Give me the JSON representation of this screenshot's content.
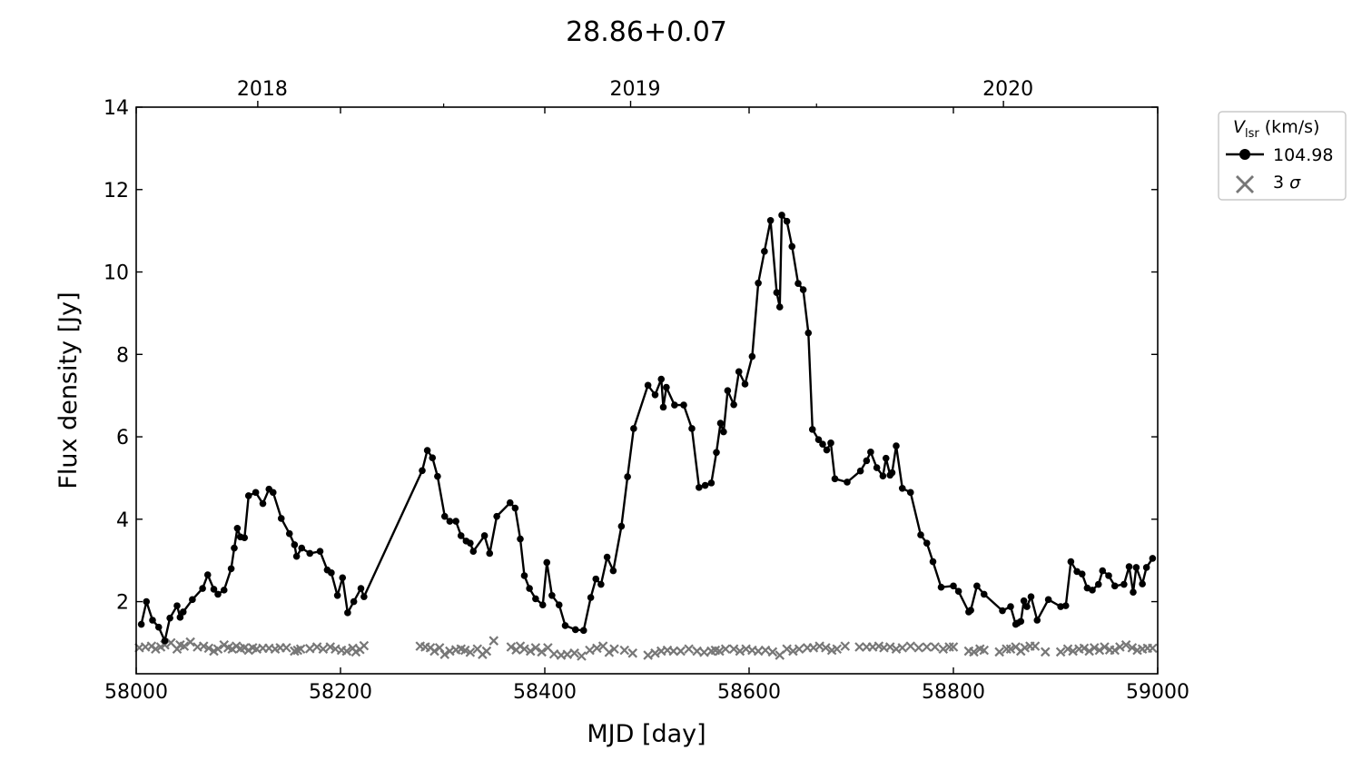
{
  "chart_data": {
    "type": "line",
    "title": "28.86+0.07",
    "xlabel": "MJD [day]",
    "ylabel": "Flux density [Jy]",
    "xlim": [
      58000,
      59000
    ],
    "ylim": [
      0.25,
      14
    ],
    "xticks": [
      58000,
      58200,
      58400,
      58600,
      58800,
      59000
    ],
    "xtick_labels": [
      "58000",
      "58200",
      "58400",
      "58600",
      "58800",
      "59000"
    ],
    "yticks": [
      2,
      4,
      6,
      8,
      10,
      12,
      14
    ],
    "ytick_labels": [
      "2",
      "4",
      "6",
      "8",
      "10",
      "12",
      "14"
    ],
    "top_axis": {
      "ticks": [
        58119,
        58484,
        58849
      ],
      "labels": [
        "2018",
        "2019",
        "2020"
      ]
    },
    "minor_top_ticks": [
      58301,
      58666
    ],
    "grid": false,
    "legend": {
      "placement": "outside-right-top",
      "title_italic": "V",
      "title_sub": "lsr",
      "title_rest": " (km/s)",
      "entries": [
        {
          "label": "104.98",
          "marker": "line-dot",
          "color": "#000000"
        },
        {
          "label_prefix": "3 ",
          "label_italic": "σ",
          "marker": "x",
          "color": "#777777"
        }
      ]
    },
    "series": [
      {
        "name": "104.98",
        "color": "#000000",
        "marker": "dot",
        "x": [
          58005,
          58010,
          58016,
          58022,
          58028,
          58033,
          58040,
          58043,
          58046,
          58055,
          58065,
          58070,
          58076,
          58080,
          58086,
          58093,
          58096,
          58099,
          58102,
          58106,
          58110,
          58117,
          58124,
          58130,
          58134,
          58142,
          58150,
          58155,
          58157,
          58162,
          58170,
          58180,
          58187,
          58191,
          58197,
          58202,
          58207,
          58213,
          58220,
          58223,
          58280,
          58285,
          58290,
          58295,
          58302,
          58307,
          58313,
          58318,
          58323,
          58327,
          58330,
          58341,
          58346,
          58353,
          58366,
          58371,
          58376,
          58380,
          58385,
          58391,
          58398,
          58402,
          58407,
          58414,
          58420,
          58430,
          58438,
          58445,
          58450,
          58455,
          58461,
          58467,
          58475,
          58481,
          58487,
          58501,
          58508,
          58514,
          58516,
          58519,
          58527,
          58536,
          58544,
          58551,
          58557,
          58563,
          58568,
          58572,
          58575,
          58579,
          58585,
          58590,
          58596,
          58603,
          58609,
          58615,
          58621,
          58627,
          58630,
          58632,
          58637,
          58642,
          58648,
          58653,
          58658,
          58662,
          58668,
          58672,
          58676,
          58680,
          58684,
          58696,
          58709,
          58715,
          58719,
          58725,
          58731,
          58734,
          58738,
          58740,
          58744,
          58750,
          58758,
          58768,
          58774,
          58780,
          58788,
          58800,
          58805,
          58815,
          58817,
          58823,
          58830,
          58848,
          58856,
          58861,
          58863,
          58866,
          58869,
          58872,
          58876,
          58882,
          58893,
          58905,
          58910,
          58915,
          58921,
          58926,
          58931,
          58936,
          58942,
          58946,
          58952,
          58958,
          58967,
          58972,
          58976,
          58979,
          58985,
          58989,
          58995
        ],
        "y": [
          1.45,
          2.0,
          1.55,
          1.38,
          1.05,
          1.6,
          1.9,
          1.62,
          1.75,
          2.05,
          2.32,
          2.65,
          2.3,
          2.18,
          2.28,
          2.8,
          3.3,
          3.78,
          3.57,
          3.55,
          4.57,
          4.65,
          4.38,
          4.73,
          4.65,
          4.02,
          3.65,
          3.38,
          3.1,
          3.3,
          3.17,
          3.22,
          2.77,
          2.7,
          2.15,
          2.58,
          1.73,
          2.0,
          2.32,
          2.12,
          5.18,
          5.67,
          5.49,
          5.04,
          4.07,
          3.95,
          3.95,
          3.6,
          3.47,
          3.42,
          3.22,
          3.6,
          3.17,
          4.07,
          4.4,
          4.27,
          3.52,
          2.63,
          2.32,
          2.07,
          1.92,
          2.95,
          2.15,
          1.92,
          1.42,
          1.32,
          1.3,
          2.1,
          2.55,
          2.42,
          3.08,
          2.75,
          3.83,
          5.03,
          6.2,
          7.25,
          7.02,
          7.4,
          6.72,
          7.2,
          6.77,
          6.77,
          6.2,
          4.77,
          4.82,
          4.88,
          5.62,
          6.33,
          6.12,
          7.12,
          6.78,
          7.58,
          7.28,
          7.95,
          9.73,
          10.5,
          11.25,
          9.5,
          9.15,
          11.38,
          11.23,
          10.62,
          9.72,
          9.57,
          8.52,
          6.18,
          5.93,
          5.82,
          5.68,
          5.85,
          4.98,
          4.9,
          5.17,
          5.42,
          5.63,
          5.25,
          5.05,
          5.48,
          5.07,
          5.13,
          5.78,
          4.75,
          4.65,
          3.62,
          3.42,
          2.97,
          2.35,
          2.38,
          2.25,
          1.75,
          1.79,
          2.38,
          2.18,
          1.78,
          1.88,
          1.45,
          1.48,
          1.52,
          2.02,
          1.88,
          2.12,
          1.55,
          2.05,
          1.88,
          1.9,
          2.97,
          2.73,
          2.67,
          2.33,
          2.28,
          2.42,
          2.75,
          2.63,
          2.38,
          2.42,
          2.85,
          2.23,
          2.83,
          2.43,
          2.83,
          3.05
        ]
      },
      {
        "name": "3 σ",
        "color": "#777777",
        "marker": "x",
        "x": [
          58003,
          58009,
          58015,
          58019,
          58024,
          58028,
          58034,
          58040,
          58043,
          58047,
          58053,
          58060,
          58066,
          58071,
          58076,
          58080,
          58086,
          58090,
          58094,
          58098,
          58102,
          58106,
          58110,
          58114,
          58118,
          58124,
          58130,
          58136,
          58141,
          58147,
          58155,
          58158,
          58161,
          58170,
          58177,
          58183,
          58190,
          58195,
          58201,
          58206,
          58212,
          58215,
          58219,
          58223,
          58278,
          58283,
          58288,
          58292,
          58297,
          58302,
          58307,
          58313,
          58318,
          58322,
          58327,
          58334,
          58339,
          58343,
          58350,
          58367,
          58372,
          58376,
          58380,
          58386,
          58391,
          58397,
          58403,
          58409,
          58416,
          58422,
          58429,
          58436,
          58444,
          58451,
          58457,
          58463,
          58468,
          58478,
          58486,
          58501,
          58508,
          58514,
          58520,
          58526,
          58533,
          58541,
          58549,
          58556,
          58563,
          58567,
          58571,
          58577,
          58585,
          58591,
          58597,
          58603,
          58609,
          58616,
          58623,
          58630,
          58637,
          58643,
          58649,
          58657,
          58663,
          58669,
          58675,
          58681,
          58686,
          58694,
          58708,
          58715,
          58721,
          58727,
          58732,
          58738,
          58744,
          58750,
          58758,
          58766,
          58774,
          58782,
          58790,
          58796,
          58800,
          58815,
          58820,
          58826,
          58830,
          58845,
          58852,
          58856,
          58861,
          58866,
          58870,
          58875,
          58880,
          58890,
          58905,
          58912,
          58917,
          58923,
          58928,
          58933,
          58938,
          58943,
          58948,
          58953,
          58958,
          58963,
          58969,
          58975,
          58980,
          58985,
          58990,
          58995
        ],
        "y": [
          0.88,
          0.9,
          0.92,
          0.85,
          0.9,
          0.95,
          1.0,
          0.85,
          0.95,
          0.92,
          1.02,
          0.9,
          0.92,
          0.87,
          0.8,
          0.85,
          0.95,
          0.88,
          0.85,
          0.92,
          0.86,
          0.88,
          0.82,
          0.88,
          0.85,
          0.87,
          0.87,
          0.85,
          0.88,
          0.88,
          0.8,
          0.82,
          0.85,
          0.86,
          0.9,
          0.85,
          0.9,
          0.85,
          0.82,
          0.8,
          0.87,
          0.78,
          0.84,
          0.93,
          0.92,
          0.9,
          0.88,
          0.8,
          0.88,
          0.72,
          0.8,
          0.83,
          0.85,
          0.82,
          0.77,
          0.85,
          0.72,
          0.8,
          1.05,
          0.9,
          0.83,
          0.92,
          0.85,
          0.8,
          0.88,
          0.78,
          0.88,
          0.73,
          0.7,
          0.72,
          0.75,
          0.68,
          0.82,
          0.87,
          0.92,
          0.77,
          0.85,
          0.82,
          0.75,
          0.7,
          0.75,
          0.8,
          0.82,
          0.8,
          0.8,
          0.85,
          0.8,
          0.77,
          0.8,
          0.82,
          0.8,
          0.85,
          0.85,
          0.8,
          0.85,
          0.82,
          0.8,
          0.82,
          0.78,
          0.7,
          0.85,
          0.8,
          0.85,
          0.88,
          0.88,
          0.92,
          0.88,
          0.82,
          0.85,
          0.92,
          0.9,
          0.9,
          0.9,
          0.92,
          0.88,
          0.9,
          0.85,
          0.88,
          0.92,
          0.88,
          0.9,
          0.9,
          0.85,
          0.9,
          0.9,
          0.8,
          0.78,
          0.85,
          0.82,
          0.78,
          0.85,
          0.85,
          0.9,
          0.8,
          0.88,
          0.92,
          0.92,
          0.78,
          0.78,
          0.85,
          0.8,
          0.85,
          0.87,
          0.8,
          0.88,
          0.82,
          0.9,
          0.83,
          0.82,
          0.9,
          0.95,
          0.88,
          0.82,
          0.85,
          0.87,
          0.87
        ]
      }
    ]
  }
}
